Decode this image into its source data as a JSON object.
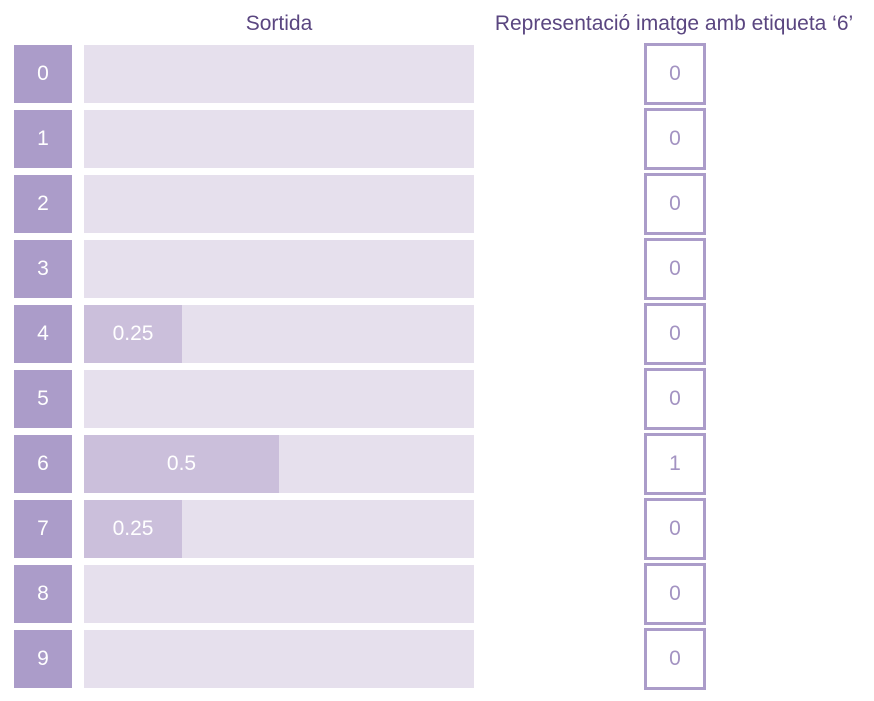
{
  "headers": {
    "output": "Sortida",
    "representation": "Representació imatge amb etiqueta ‘6’"
  },
  "colors": {
    "label_box": "#ab9cc9",
    "bar_track": "#e6e0ed",
    "bar_fill": "#cbbfdb",
    "onehot_border": "#ab9cc9",
    "header_text": "#5a4680"
  },
  "rows": [
    {
      "label": "0",
      "output": 0,
      "output_label": "",
      "onehot": "0"
    },
    {
      "label": "1",
      "output": 0,
      "output_label": "",
      "onehot": "0"
    },
    {
      "label": "2",
      "output": 0,
      "output_label": "",
      "onehot": "0"
    },
    {
      "label": "3",
      "output": 0,
      "output_label": "",
      "onehot": "0"
    },
    {
      "label": "4",
      "output": 0.25,
      "output_label": "0.25",
      "onehot": "0"
    },
    {
      "label": "5",
      "output": 0,
      "output_label": "",
      "onehot": "0"
    },
    {
      "label": "6",
      "output": 0.5,
      "output_label": "0.5",
      "onehot": "1"
    },
    {
      "label": "7",
      "output": 0.25,
      "output_label": "0.25",
      "onehot": "0"
    },
    {
      "label": "8",
      "output": 0,
      "output_label": "",
      "onehot": "0"
    },
    {
      "label": "9",
      "output": 0,
      "output_label": "",
      "onehot": "0"
    }
  ]
}
